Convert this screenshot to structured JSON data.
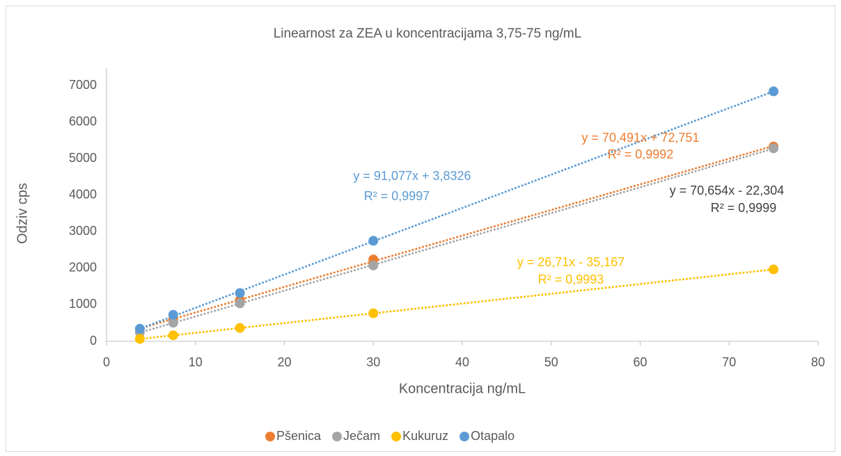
{
  "chart_data": {
    "type": "scatter",
    "title": "Linearnost za ZEA u koncentracijama 3,75-75 ng/mL",
    "x_label": "Koncentracija ng/mL",
    "y_label": "Odziv cps",
    "xlim": [
      0,
      80
    ],
    "xticks": [
      0,
      10,
      20,
      30,
      40,
      50,
      60,
      70,
      80
    ],
    "ylim": [
      0,
      7000
    ],
    "yticks": [
      0,
      1000,
      2000,
      3000,
      4000,
      5000,
      6000,
      7000
    ],
    "grid": false,
    "legend": "bottom",
    "trendline": "linear",
    "series": [
      {
        "name": "Pšenica",
        "color": "#ed7d31",
        "x": [
          3.75,
          7.5,
          15,
          30,
          75
        ],
        "values": [
          337,
          601,
          1130,
          2240,
          5330
        ],
        "trendline_label": [
          "y = 70,491x + 72,751",
          "R² = 0,9992"
        ]
      },
      {
        "name": "Ječam",
        "color": "#a5a5a5",
        "x": [
          3.75,
          7.5,
          15,
          30,
          75
        ],
        "values": [
          243,
          508,
          1038,
          2075,
          5280
        ],
        "trendline_label": [
          "y = 70,654x - 22,304",
          "R² = 0,9999"
        ]
      },
      {
        "name": "Kukuruz",
        "color": "#ffc000",
        "x": [
          3.75,
          7.5,
          15,
          30,
          75
        ],
        "values": [
          65,
          165,
          366,
          766,
          1968
        ],
        "trendline_label": [
          "y = 26,71x - 35,167",
          "R² = 0,9993"
        ]
      },
      {
        "name": "Otapalo",
        "color": "#5b9bd5",
        "x": [
          3.75,
          7.5,
          15,
          30,
          75
        ],
        "values": [
          345,
          725,
          1320,
          2750,
          6840
        ],
        "trendline_label": [
          "y = 91,077x + 3,8326",
          "R² = 0,9997"
        ]
      }
    ]
  }
}
